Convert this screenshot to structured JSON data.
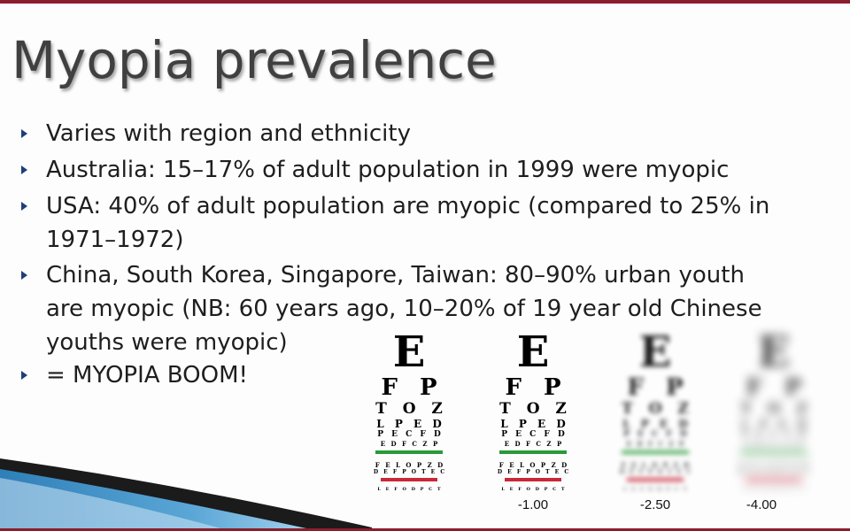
{
  "slide": {
    "title": "Myopia prevalence",
    "accent_color": "#8b1e2d",
    "bullet_marker_color": "#1f3e7a",
    "bullets": [
      {
        "lines": [
          "Varies with region and ethnicity"
        ]
      },
      {
        "lines": [
          "Australia: 15–17% of adult population in 1999 were myopic"
        ]
      },
      {
        "lines": [
          "USA: 40% of adult population are myopic (compared to 25% in",
          "1971–1972)"
        ]
      },
      {
        "lines": [
          "China, South Korea, Singapore, Taiwan: 80–90% urban youth",
          "are myopic (NB: 60 years ago, 10–20% of 19 year old Chinese",
          "youths were myopic)"
        ]
      },
      {
        "lines": [
          "= MYOPIA BOOM!"
        ]
      }
    ]
  },
  "eye_chart": {
    "letter_rows": [
      "E",
      "F P",
      "T O Z",
      "L P E D",
      "P E C F D",
      "E D F C Z P",
      "F E L O P Z D",
      "D E F P O T E C",
      "L E F O D P C T"
    ],
    "line_colors": {
      "green": "#2a9a3a",
      "red": "#c8283a"
    },
    "panels": [
      {
        "caption": ""
      },
      {
        "caption": "-1.00"
      },
      {
        "caption": "-2.50"
      },
      {
        "caption": "-4.00"
      }
    ]
  }
}
